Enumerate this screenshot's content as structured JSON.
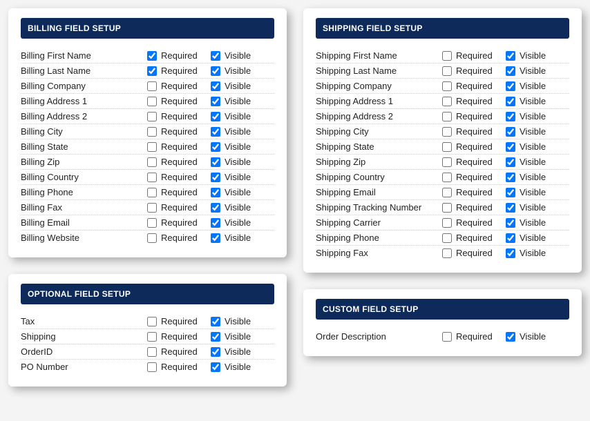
{
  "labels": {
    "required": "Required",
    "visible": "Visible"
  },
  "panels": [
    {
      "id": "billing",
      "title": "BILLING FIELD SETUP",
      "column": 0,
      "fields": [
        {
          "id": "billing-first-name",
          "label": "Billing First Name",
          "required": true,
          "visible": true
        },
        {
          "id": "billing-last-name",
          "label": "Billing Last Name",
          "required": true,
          "visible": true
        },
        {
          "id": "billing-company",
          "label": "Billing Company",
          "required": false,
          "visible": true
        },
        {
          "id": "billing-address-1",
          "label": "Billing Address 1",
          "required": false,
          "visible": true
        },
        {
          "id": "billing-address-2",
          "label": "Billing Address 2",
          "required": false,
          "visible": true
        },
        {
          "id": "billing-city",
          "label": "Billing City",
          "required": false,
          "visible": true
        },
        {
          "id": "billing-state",
          "label": "Billing State",
          "required": false,
          "visible": true
        },
        {
          "id": "billing-zip",
          "label": "Billing Zip",
          "required": false,
          "visible": true
        },
        {
          "id": "billing-country",
          "label": "Billing Country",
          "required": false,
          "visible": true
        },
        {
          "id": "billing-phone",
          "label": "Billing Phone",
          "required": false,
          "visible": true
        },
        {
          "id": "billing-fax",
          "label": "Billing Fax",
          "required": false,
          "visible": true
        },
        {
          "id": "billing-email",
          "label": "Billing Email",
          "required": false,
          "visible": true
        },
        {
          "id": "billing-website",
          "label": "Billing Website",
          "required": false,
          "visible": true
        }
      ]
    },
    {
      "id": "optional",
      "title": "OPTIONAL FIELD SETUP",
      "column": 0,
      "fields": [
        {
          "id": "tax",
          "label": "Tax",
          "required": false,
          "visible": true
        },
        {
          "id": "shipping",
          "label": "Shipping",
          "required": false,
          "visible": true
        },
        {
          "id": "orderid",
          "label": "OrderID",
          "required": false,
          "visible": true
        },
        {
          "id": "po-number",
          "label": "PO Number",
          "required": false,
          "visible": true
        }
      ]
    },
    {
      "id": "shipping",
      "title": "SHIPPING FIELD SETUP",
      "column": 1,
      "fields": [
        {
          "id": "shipping-first-name",
          "label": "Shipping First Name",
          "required": false,
          "visible": true
        },
        {
          "id": "shipping-last-name",
          "label": "Shipping Last Name",
          "required": false,
          "visible": true
        },
        {
          "id": "shipping-company",
          "label": "Shipping Company",
          "required": false,
          "visible": true
        },
        {
          "id": "shipping-address-1",
          "label": "Shipping Address 1",
          "required": false,
          "visible": true
        },
        {
          "id": "shipping-address-2",
          "label": "Shipping Address 2",
          "required": false,
          "visible": true
        },
        {
          "id": "shipping-city",
          "label": "Shipping City",
          "required": false,
          "visible": true
        },
        {
          "id": "shipping-state",
          "label": "Shipping State",
          "required": false,
          "visible": true
        },
        {
          "id": "shipping-zip",
          "label": "Shipping Zip",
          "required": false,
          "visible": true
        },
        {
          "id": "shipping-country",
          "label": "Shipping Country",
          "required": false,
          "visible": true
        },
        {
          "id": "shipping-email",
          "label": "Shipping Email",
          "required": false,
          "visible": true
        },
        {
          "id": "shipping-tracking-number",
          "label": "Shipping Tracking Number",
          "required": false,
          "visible": true
        },
        {
          "id": "shipping-carrier",
          "label": "Shipping Carrier",
          "required": false,
          "visible": true
        },
        {
          "id": "shipping-phone",
          "label": "Shipping Phone",
          "required": false,
          "visible": true
        },
        {
          "id": "shipping-fax",
          "label": "Shipping Fax",
          "required": false,
          "visible": true
        }
      ]
    },
    {
      "id": "custom",
      "title": "CUSTOM FIELD SETUP",
      "column": 1,
      "fields": [
        {
          "id": "order-description",
          "label": "Order Description",
          "required": false,
          "visible": true
        }
      ]
    }
  ]
}
